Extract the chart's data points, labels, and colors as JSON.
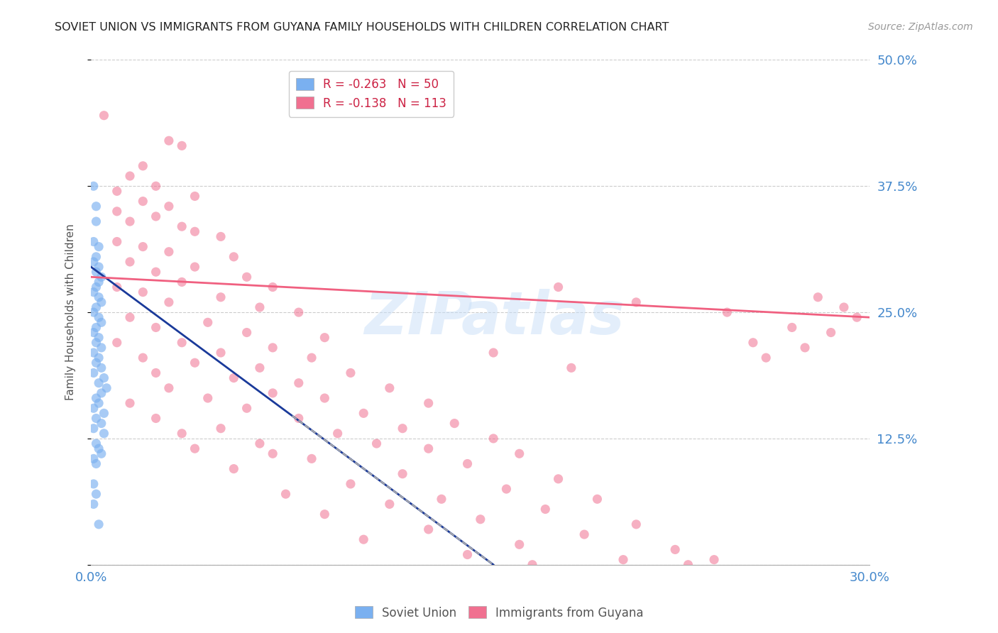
{
  "title": "SOVIET UNION VS IMMIGRANTS FROM GUYANA FAMILY HOUSEHOLDS WITH CHILDREN CORRELATION CHART",
  "source": "Source: ZipAtlas.com",
  "ylabel": "Family Households with Children",
  "x_min": 0.0,
  "x_max": 0.3,
  "y_min": 0.0,
  "y_max": 0.5,
  "x_ticks": [
    0.0,
    0.05,
    0.1,
    0.15,
    0.2,
    0.25,
    0.3
  ],
  "y_ticks": [
    0.0,
    0.125,
    0.25,
    0.375,
    0.5
  ],
  "y_tick_labels_right": [
    "",
    "12.5%",
    "25.0%",
    "37.5%",
    "50.0%"
  ],
  "soviet_color": "#7ab0f0",
  "guyana_color": "#f07090",
  "soviet_line_color": "#1a3a9a",
  "guyana_line_color": "#f06080",
  "background_color": "#ffffff",
  "grid_color": "#cccccc",
  "tick_label_color": "#4488cc",
  "soviet_scatter": [
    [
      0.001,
      0.375
    ],
    [
      0.002,
      0.355
    ],
    [
      0.002,
      0.34
    ],
    [
      0.001,
      0.32
    ],
    [
      0.003,
      0.315
    ],
    [
      0.002,
      0.305
    ],
    [
      0.001,
      0.3
    ],
    [
      0.003,
      0.295
    ],
    [
      0.002,
      0.29
    ],
    [
      0.004,
      0.285
    ],
    [
      0.003,
      0.28
    ],
    [
      0.002,
      0.275
    ],
    [
      0.001,
      0.27
    ],
    [
      0.003,
      0.265
    ],
    [
      0.004,
      0.26
    ],
    [
      0.002,
      0.255
    ],
    [
      0.001,
      0.25
    ],
    [
      0.003,
      0.245
    ],
    [
      0.004,
      0.24
    ],
    [
      0.002,
      0.235
    ],
    [
      0.001,
      0.23
    ],
    [
      0.003,
      0.225
    ],
    [
      0.002,
      0.22
    ],
    [
      0.004,
      0.215
    ],
    [
      0.001,
      0.21
    ],
    [
      0.003,
      0.205
    ],
    [
      0.002,
      0.2
    ],
    [
      0.004,
      0.195
    ],
    [
      0.001,
      0.19
    ],
    [
      0.005,
      0.185
    ],
    [
      0.003,
      0.18
    ],
    [
      0.006,
      0.175
    ],
    [
      0.004,
      0.17
    ],
    [
      0.002,
      0.165
    ],
    [
      0.003,
      0.16
    ],
    [
      0.001,
      0.155
    ],
    [
      0.005,
      0.15
    ],
    [
      0.002,
      0.145
    ],
    [
      0.004,
      0.14
    ],
    [
      0.001,
      0.135
    ],
    [
      0.005,
      0.13
    ],
    [
      0.002,
      0.12
    ],
    [
      0.003,
      0.115
    ],
    [
      0.004,
      0.11
    ],
    [
      0.001,
      0.105
    ],
    [
      0.002,
      0.1
    ],
    [
      0.001,
      0.08
    ],
    [
      0.002,
      0.07
    ],
    [
      0.001,
      0.06
    ],
    [
      0.003,
      0.04
    ]
  ],
  "guyana_scatter": [
    [
      0.005,
      0.445
    ],
    [
      0.03,
      0.42
    ],
    [
      0.035,
      0.415
    ],
    [
      0.02,
      0.395
    ],
    [
      0.015,
      0.385
    ],
    [
      0.025,
      0.375
    ],
    [
      0.01,
      0.37
    ],
    [
      0.04,
      0.365
    ],
    [
      0.02,
      0.36
    ],
    [
      0.03,
      0.355
    ],
    [
      0.01,
      0.35
    ],
    [
      0.025,
      0.345
    ],
    [
      0.015,
      0.34
    ],
    [
      0.035,
      0.335
    ],
    [
      0.04,
      0.33
    ],
    [
      0.05,
      0.325
    ],
    [
      0.01,
      0.32
    ],
    [
      0.02,
      0.315
    ],
    [
      0.03,
      0.31
    ],
    [
      0.055,
      0.305
    ],
    [
      0.015,
      0.3
    ],
    [
      0.04,
      0.295
    ],
    [
      0.025,
      0.29
    ],
    [
      0.06,
      0.285
    ],
    [
      0.035,
      0.28
    ],
    [
      0.01,
      0.275
    ],
    [
      0.07,
      0.275
    ],
    [
      0.02,
      0.27
    ],
    [
      0.05,
      0.265
    ],
    [
      0.03,
      0.26
    ],
    [
      0.065,
      0.255
    ],
    [
      0.08,
      0.25
    ],
    [
      0.015,
      0.245
    ],
    [
      0.045,
      0.24
    ],
    [
      0.025,
      0.235
    ],
    [
      0.06,
      0.23
    ],
    [
      0.09,
      0.225
    ],
    [
      0.01,
      0.22
    ],
    [
      0.035,
      0.22
    ],
    [
      0.07,
      0.215
    ],
    [
      0.05,
      0.21
    ],
    [
      0.02,
      0.205
    ],
    [
      0.085,
      0.205
    ],
    [
      0.04,
      0.2
    ],
    [
      0.065,
      0.195
    ],
    [
      0.025,
      0.19
    ],
    [
      0.1,
      0.19
    ],
    [
      0.055,
      0.185
    ],
    [
      0.08,
      0.18
    ],
    [
      0.03,
      0.175
    ],
    [
      0.115,
      0.175
    ],
    [
      0.07,
      0.17
    ],
    [
      0.045,
      0.165
    ],
    [
      0.09,
      0.165
    ],
    [
      0.015,
      0.16
    ],
    [
      0.13,
      0.16
    ],
    [
      0.06,
      0.155
    ],
    [
      0.105,
      0.15
    ],
    [
      0.025,
      0.145
    ],
    [
      0.08,
      0.145
    ],
    [
      0.14,
      0.14
    ],
    [
      0.05,
      0.135
    ],
    [
      0.12,
      0.135
    ],
    [
      0.035,
      0.13
    ],
    [
      0.095,
      0.13
    ],
    [
      0.155,
      0.125
    ],
    [
      0.065,
      0.12
    ],
    [
      0.11,
      0.12
    ],
    [
      0.04,
      0.115
    ],
    [
      0.13,
      0.115
    ],
    [
      0.07,
      0.11
    ],
    [
      0.165,
      0.11
    ],
    [
      0.085,
      0.105
    ],
    [
      0.145,
      0.1
    ],
    [
      0.055,
      0.095
    ],
    [
      0.12,
      0.09
    ],
    [
      0.18,
      0.085
    ],
    [
      0.1,
      0.08
    ],
    [
      0.16,
      0.075
    ],
    [
      0.075,
      0.07
    ],
    [
      0.135,
      0.065
    ],
    [
      0.195,
      0.065
    ],
    [
      0.115,
      0.06
    ],
    [
      0.175,
      0.055
    ],
    [
      0.09,
      0.05
    ],
    [
      0.15,
      0.045
    ],
    [
      0.21,
      0.04
    ],
    [
      0.13,
      0.035
    ],
    [
      0.19,
      0.03
    ],
    [
      0.105,
      0.025
    ],
    [
      0.165,
      0.02
    ],
    [
      0.225,
      0.015
    ],
    [
      0.145,
      0.01
    ],
    [
      0.205,
      0.005
    ],
    [
      0.24,
      0.005
    ],
    [
      0.17,
      0.0
    ],
    [
      0.23,
      0.0
    ],
    [
      0.18,
      0.275
    ],
    [
      0.21,
      0.26
    ],
    [
      0.245,
      0.25
    ],
    [
      0.155,
      0.21
    ],
    [
      0.185,
      0.195
    ],
    [
      0.28,
      0.265
    ],
    [
      0.295,
      0.245
    ],
    [
      0.255,
      0.22
    ],
    [
      0.27,
      0.235
    ],
    [
      0.26,
      0.205
    ],
    [
      0.29,
      0.255
    ],
    [
      0.285,
      0.23
    ],
    [
      0.275,
      0.215
    ]
  ],
  "soviet_line": {
    "x0": 0.0,
    "y0": 0.295,
    "x1": 0.155,
    "y1": 0.0
  },
  "guyana_line": {
    "x0": 0.0,
    "y0": 0.285,
    "x1": 0.3,
    "y1": 0.245
  }
}
